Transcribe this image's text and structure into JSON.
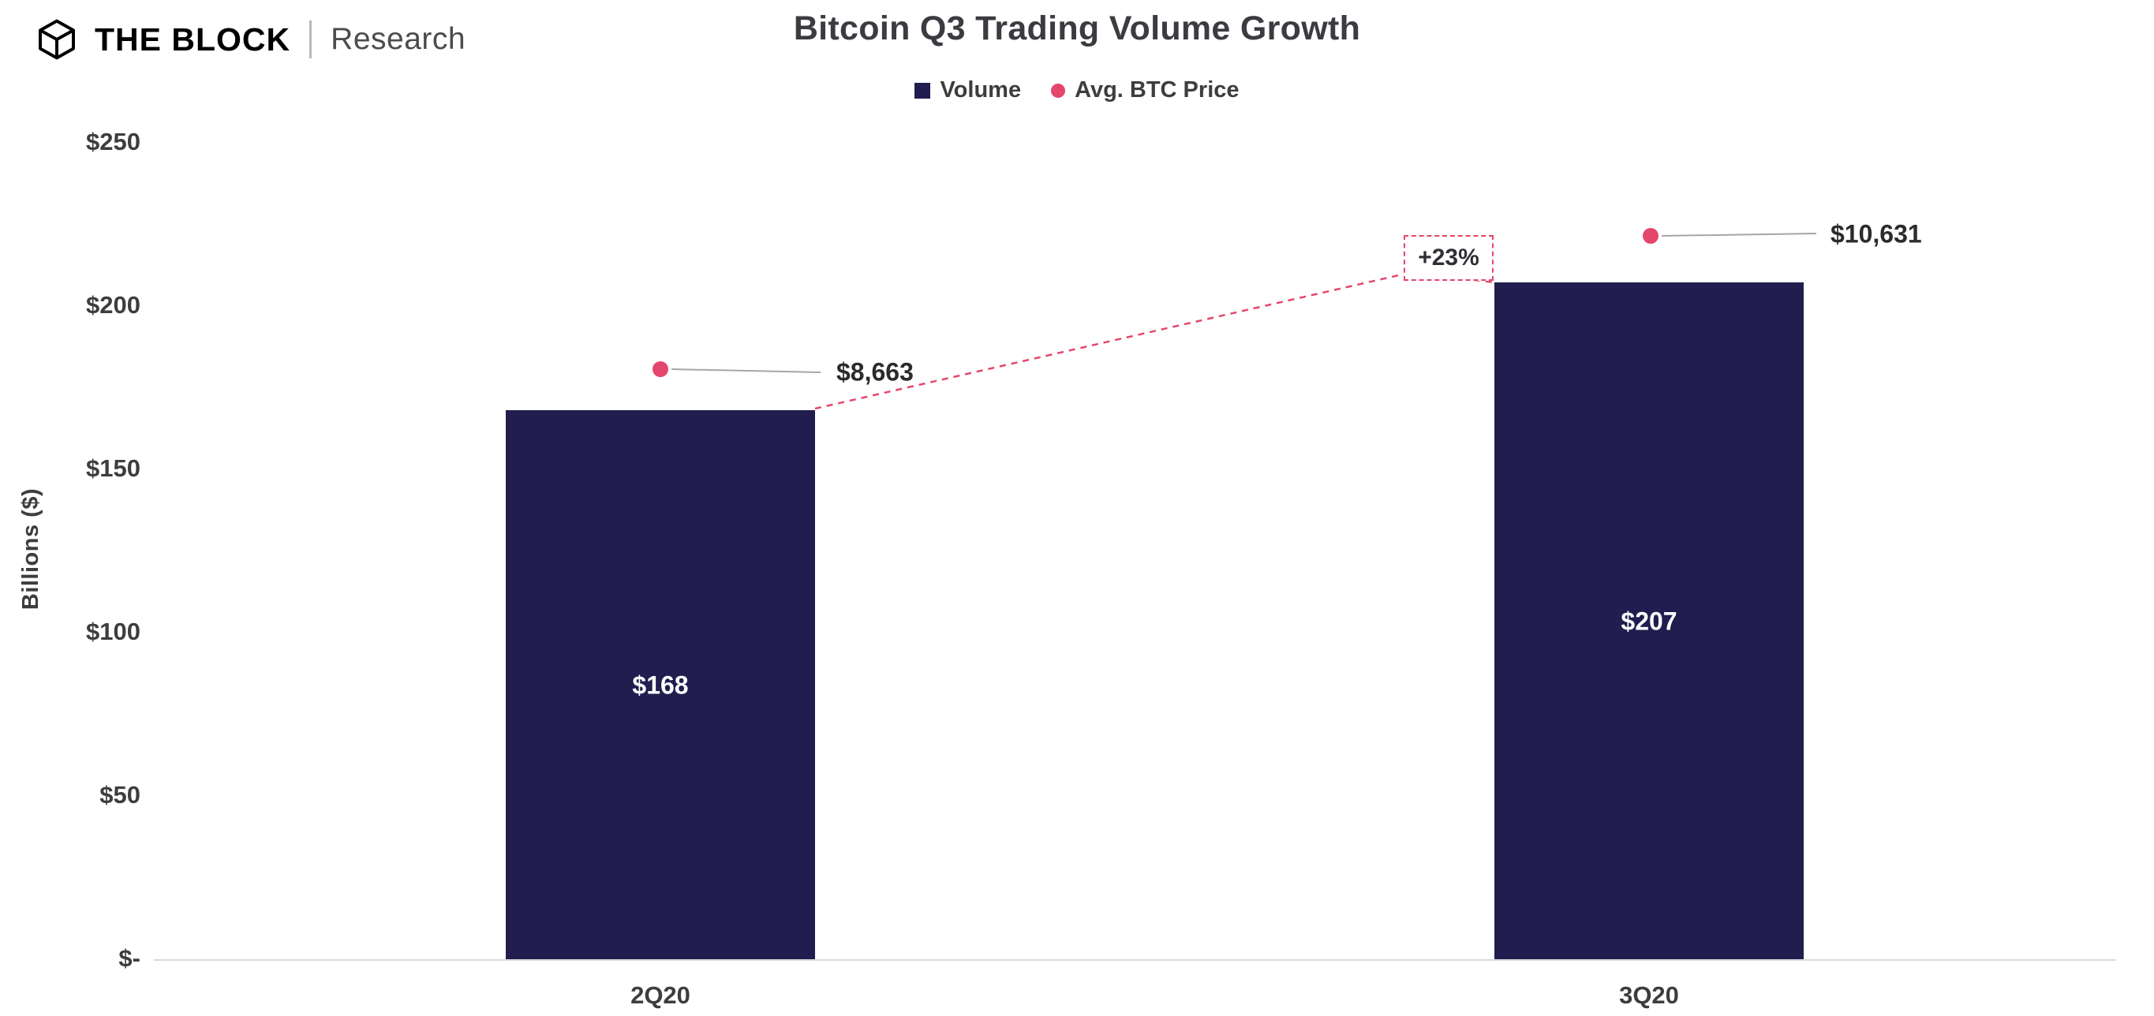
{
  "brand": {
    "name": "THE BLOCK",
    "division": "Research"
  },
  "chart_data": {
    "type": "bar",
    "title": "Bitcoin Q3 Trading Volume Growth",
    "ylabel": "Billions ($)",
    "ylim": [
      0,
      250
    ],
    "yticks": [
      "$250",
      "$200",
      "$150",
      "$100",
      "$50",
      "$-"
    ],
    "categories": [
      "2Q20",
      "3Q20"
    ],
    "legend": [
      "Volume",
      "Avg. BTC Price"
    ],
    "grid": false,
    "legend_position": "top",
    "series": [
      {
        "name": "Volume",
        "type": "bar",
        "color": "#211d4e",
        "values": [
          168,
          207
        ],
        "labels": [
          "$168",
          "$207"
        ]
      },
      {
        "name": "Avg. BTC Price",
        "type": "point",
        "color": "#e5466b",
        "values": [
          8663,
          10631
        ],
        "labels": [
          "$8,663",
          "$10,631"
        ]
      }
    ],
    "annotation": {
      "label": "+23%"
    }
  }
}
